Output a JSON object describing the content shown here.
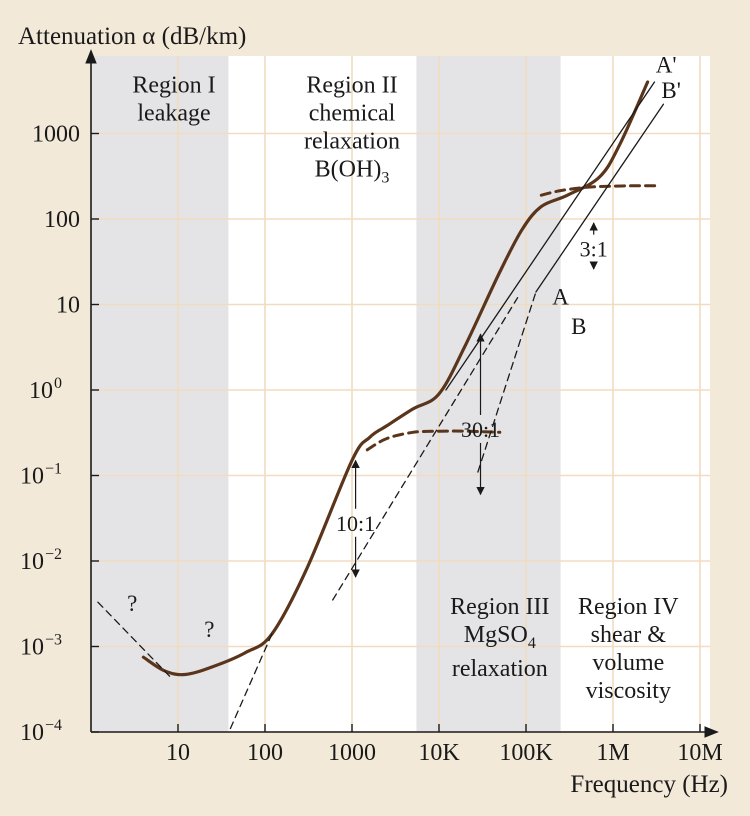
{
  "chart_data": {
    "type": "line",
    "title": "",
    "xlabel": "Frequency (Hz)",
    "ylabel": "Attenuation α (dB/km)",
    "x_scale": "log",
    "y_scale": "log",
    "xlim": [
      1,
      10000000
    ],
    "ylim": [
      0.0001,
      10000
    ],
    "grid": true,
    "colors": {
      "background": "#f3e9d9",
      "plot": "#ffffff",
      "band": "#e4e4e6",
      "grid": "#f0dcc0",
      "curve": "#5a351c",
      "text": "#1a1a1a"
    },
    "x_ticks": [
      {
        "value": 10,
        "label": "10"
      },
      {
        "value": 100,
        "label": "100"
      },
      {
        "value": 1000,
        "label": "1000"
      },
      {
        "value": 10000,
        "label": "10K"
      },
      {
        "value": 100000,
        "label": "100K"
      },
      {
        "value": 1000000,
        "label": "1M"
      },
      {
        "value": 10000000,
        "label": "10M"
      }
    ],
    "y_ticks": [
      {
        "value": 0.0001,
        "base": "10",
        "exp": "−4"
      },
      {
        "value": 0.001,
        "base": "10",
        "exp": "−3"
      },
      {
        "value": 0.01,
        "base": "10",
        "exp": "−2"
      },
      {
        "value": 0.1,
        "base": "10",
        "exp": "−1"
      },
      {
        "value": 1,
        "base": "10",
        "exp": "0"
      },
      {
        "value": 10,
        "base": "10",
        "exp": ""
      },
      {
        "value": 100,
        "base": "100",
        "exp": ""
      },
      {
        "value": 1000,
        "base": "1000",
        "exp": ""
      }
    ],
    "bands": [
      {
        "x0": 1,
        "x1": 38
      },
      {
        "x0": 5500,
        "x1": 250000
      }
    ],
    "regions": [
      {
        "lines": [
          "Region I",
          "leakage"
        ],
        "x": 9,
        "y": 3000
      },
      {
        "lines": [
          "Region II",
          "chemical",
          "relaxation",
          "B(OH)3"
        ],
        "x": 1000,
        "y": 3000
      },
      {
        "lines": [
          "Region III",
          "MgSO4",
          "relaxation"
        ],
        "x": 50000,
        "y": 0.0024
      },
      {
        "lines": [
          "Region IV",
          "shear &",
          "volume",
          "viscosity"
        ],
        "x": 1500000,
        "y": 0.0024
      }
    ],
    "series": [
      {
        "style": "solid-thick",
        "x": [
          4,
          7,
          12,
          25,
          60,
          120,
          300,
          1000,
          1600,
          2500,
          5000,
          10000,
          20000,
          50000,
          90000,
          150000,
          300000,
          700000,
          1200000,
          2500000
        ],
        "y": [
          0.00075,
          0.00052,
          0.00047,
          0.00058,
          0.00085,
          0.0014,
          0.008,
          0.15,
          0.28,
          0.38,
          0.6,
          0.9,
          3.3,
          24,
          75,
          140,
          190,
          310,
          750,
          4000
        ]
      },
      {
        "style": "dashed-thick",
        "x": [
          1500,
          2500,
          5000,
          10000,
          20000,
          50000
        ],
        "y": [
          0.2,
          0.27,
          0.32,
          0.33,
          0.33,
          0.32
        ]
      },
      {
        "style": "dashed-thick",
        "x": [
          150000,
          250000,
          500000,
          1000000,
          2000000,
          3500000
        ],
        "y": [
          190,
          215,
          235,
          242,
          245,
          245
        ]
      },
      {
        "style": "dashed-thin",
        "x": [
          1.2,
          8
        ],
        "y": [
          0.0033,
          0.00045
        ]
      },
      {
        "style": "dashed-thin",
        "x": [
          40,
          120
        ],
        "y": [
          0.00011,
          0.0014
        ]
      },
      {
        "style": "dashed-thin",
        "x": [
          600,
          80000
        ],
        "y": [
          0.0035,
          12
        ]
      },
      {
        "style": "dashed-thin",
        "x": [
          28000,
          130000
        ],
        "y": [
          0.11,
          14
        ]
      },
      {
        "style": "solid-thin",
        "x": [
          12000,
          3000000
        ],
        "y": [
          1.0,
          4000
        ]
      },
      {
        "style": "solid-thin",
        "x": [
          130000,
          3800000
        ],
        "y": [
          14,
          2200
        ]
      }
    ],
    "line_labels": [
      {
        "text": "A'",
        "x": 3100000,
        "y": 5200
      },
      {
        "text": "B'",
        "x": 3600000,
        "y": 2600
      },
      {
        "text": "A",
        "x": 200000,
        "y": 10
      },
      {
        "text": "B",
        "x": 330000,
        "y": 4.5
      }
    ],
    "question_marks": [
      {
        "text": "?",
        "x": 2.6,
        "y": 0.0026
      },
      {
        "text": "?",
        "x": 20,
        "y": 0.0013
      }
    ],
    "ratios": [
      {
        "text": "10:1",
        "x": 1100,
        "y_low": 0.0065,
        "y_high": 0.15,
        "label_y": 0.028
      },
      {
        "text": "30:1",
        "x": 30000,
        "y_low": 0.06,
        "y_high": 4.5,
        "label_y": 0.35
      },
      {
        "text": "3:1",
        "x": 600000,
        "y_low": 26,
        "y_high": 90,
        "label_y": 45
      }
    ]
  }
}
